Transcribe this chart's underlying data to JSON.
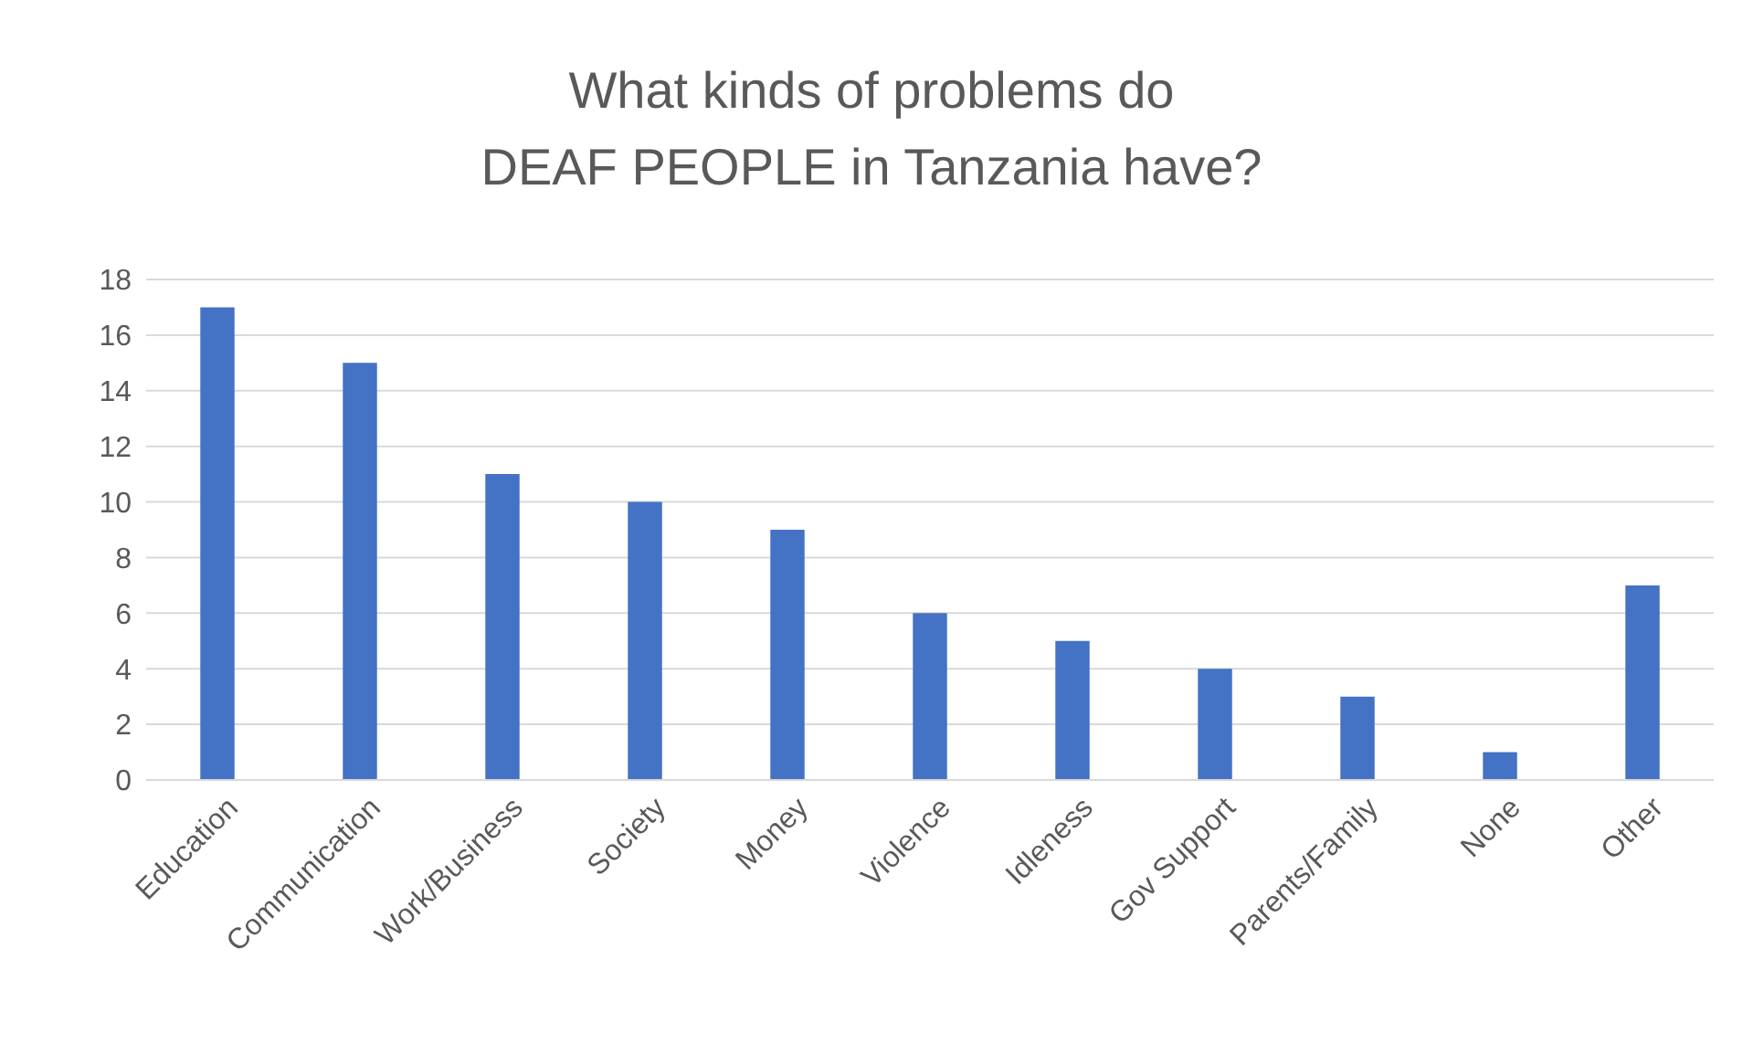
{
  "chart_data": {
    "type": "bar",
    "title": "What kinds of problems do\nDEAF PEOPLE in Tanzania have?",
    "categories": [
      "Education",
      "Communication",
      "Work/Business",
      "Society",
      "Money",
      "Violence",
      "Idleness",
      "Gov Support",
      "Parents/Family",
      "None",
      "Other"
    ],
    "values": [
      17,
      15,
      11,
      10,
      9,
      6,
      5,
      4,
      3,
      1,
      7
    ],
    "color": "#4472c4",
    "ylim": [
      0,
      18
    ],
    "yticks": [
      0,
      2,
      4,
      6,
      8,
      10,
      12,
      14,
      16,
      18
    ],
    "grid": "y",
    "legend": false
  }
}
